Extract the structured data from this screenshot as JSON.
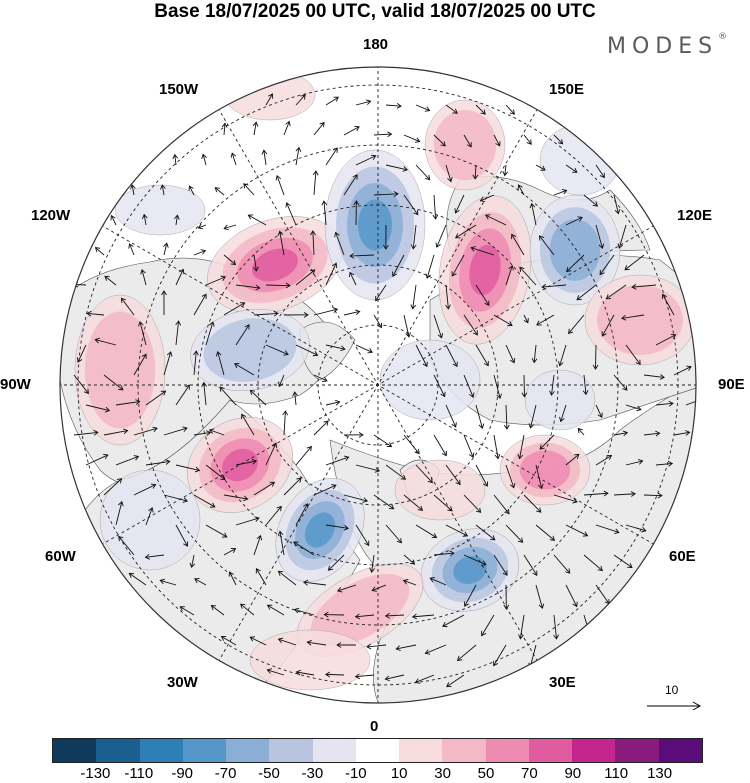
{
  "title": "Base 18/07/2025 00 UTC, valid 18/07/2025 00 UTC",
  "brand": "MODES",
  "brand_mark": "®",
  "longitude_labels": {
    "top": "180",
    "bottom": "0",
    "left": "90W",
    "right": "90E",
    "upper_left_outer": "150W",
    "upper_right_outer": "150E",
    "upper_left_inner": "120W",
    "upper_right_inner": "120E",
    "lower_left_inner": "60W",
    "lower_right_inner": "60E",
    "lower_left_outer": "30W",
    "lower_right_outer": "30E"
  },
  "reference_vector": {
    "label": "10",
    "icon": "arrow-right-icon"
  },
  "colorbar": {
    "colors": [
      "#0f3a5c",
      "#1a5f8f",
      "#2f7fb7",
      "#5697c9",
      "#8aaed6",
      "#b9c4e0",
      "#e4e5f1",
      "#ffffff",
      "#f7dcdd",
      "#f3b9c6",
      "#ee8bb1",
      "#e05c9f",
      "#c4258c",
      "#8b1a7d",
      "#5a0d78"
    ],
    "tick_labels": [
      "-130",
      "-110",
      "-90",
      "-70",
      "-50",
      "-30",
      "-10",
      "10",
      "30",
      "50",
      "70",
      "90",
      "110",
      "130"
    ]
  },
  "anomaly_levels": {
    "positive": [
      "#f7dcdd",
      "#f3b9c6",
      "#ee8bb1",
      "#e05c9f"
    ],
    "negative": [
      "#e4e5f1",
      "#b9c4e0",
      "#8aaed6",
      "#5697c9"
    ]
  },
  "land_color": "#ebebeb",
  "ocean_color": "#ffffff"
}
